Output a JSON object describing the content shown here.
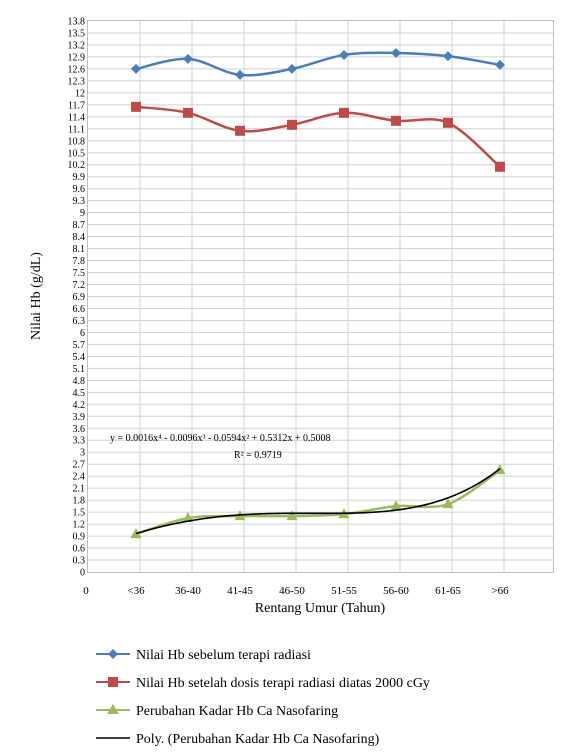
{
  "chart_data": {
    "type": "line",
    "xlabel": "Rentang Umur (Tahun)",
    "ylabel": "Nilai Hb (g/dL)",
    "x_origin_label": "0",
    "categories": [
      "<36",
      "36-40",
      "41-45",
      "46-50",
      "51-55",
      "56-60",
      "61-65",
      ">66"
    ],
    "ylim": [
      0,
      13.8
    ],
    "ytick_step": 0.3,
    "grid": true,
    "legend_position": "bottom",
    "series": [
      {
        "name": "Nilai Hb sebelum terapi radiasi",
        "color": "#4a7ebb",
        "marker": "diamond",
        "smooth": true,
        "values": [
          12.6,
          12.85,
          12.45,
          12.6,
          12.95,
          13.0,
          12.92,
          12.7
        ]
      },
      {
        "name": "Nilai Hb setelah dosis terapi radiasi diatas 2000 cGy",
        "color": "#be4b48",
        "marker": "square",
        "smooth": true,
        "values": [
          11.65,
          11.5,
          11.05,
          11.2,
          11.5,
          11.3,
          11.25,
          10.15
        ]
      },
      {
        "name": "Perubahan Kadar Hb Ca Nasofaring",
        "color": "#9bbb59",
        "marker": "triangle",
        "smooth": true,
        "values": [
          0.95,
          1.35,
          1.4,
          1.4,
          1.45,
          1.65,
          1.7,
          2.55
        ]
      }
    ],
    "trendline": {
      "name": "Poly. (Perubahan Kadar Hb Ca Nasofaring)",
      "color": "#000000",
      "coefficients": [
        0.0016,
        -0.0096,
        -0.0594,
        0.5312,
        0.5008
      ],
      "equation": "y = 0.0016x⁴ - 0.0096x³ - 0.0594x² + 0.5312x + 0.5008",
      "r_squared": "R² = 0.9719"
    }
  }
}
